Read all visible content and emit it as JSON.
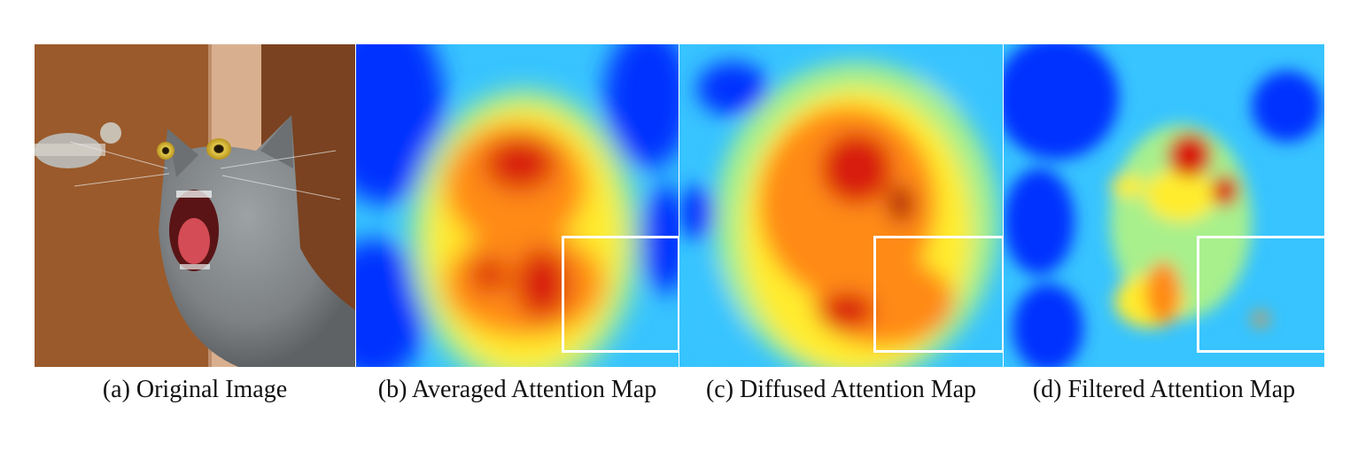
{
  "captions": {
    "a": "(a) Original Image",
    "b": "(b) Averaged Attention Map",
    "c": "(c) Diffused Attention Map",
    "d": "(d) Filtered Attention Map"
  },
  "colormap": [
    "#00008f",
    "#0033ff",
    "#37c4ff",
    "#a8f08c",
    "#ffec2e",
    "#ff8a14",
    "#d81a0d"
  ],
  "highlight_box_color": "#ffffff"
}
